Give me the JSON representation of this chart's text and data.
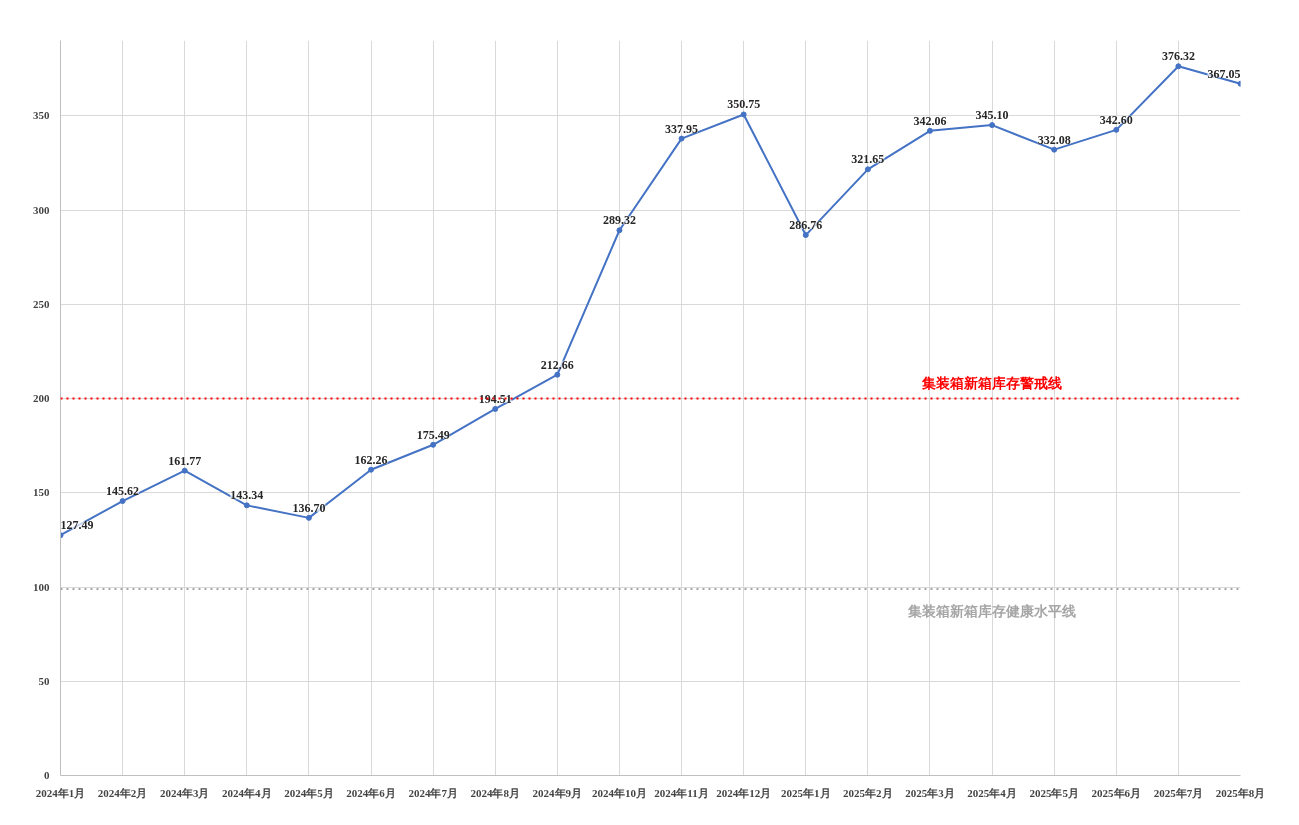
{
  "chart_data": {
    "type": "line",
    "categories": [
      "2024年1月",
      "2024年2月",
      "2024年3月",
      "2024年4月",
      "2024年5月",
      "2024年6月",
      "2024年7月",
      "2024年8月",
      "2024年9月",
      "2024年10月",
      "2024年11月",
      "2024年12月",
      "2025年1月",
      "2025年2月",
      "2025年3月",
      "2025年4月",
      "2025年5月",
      "2025年6月",
      "2025年7月",
      "2025年8月"
    ],
    "series": [
      {
        "color": "#4472c4",
        "values": [
          127.49,
          145.62,
          161.77,
          143.34,
          136.7,
          162.26,
          175.49,
          194.51,
          212.66,
          289.32,
          337.95,
          350.75,
          286.76,
          321.65,
          342.06,
          345.1,
          332.08,
          342.6,
          376.32,
          367.05
        ]
      }
    ],
    "value_labels": [
      "127.49",
      "145.62",
      "161.77",
      "143.34",
      "136.70",
      "162.26",
      "175.49",
      "194.51",
      "212.66",
      "289.32",
      "337.95",
      "350.75",
      "286.76",
      "321.65",
      "342.06",
      "345.10",
      "332.08",
      "342.60",
      "376.32",
      "367.05"
    ],
    "ylim": [
      0,
      390
    ],
    "yticks": [
      0,
      50,
      100,
      150,
      200,
      250,
      300,
      350
    ],
    "ref_lines": [
      {
        "axis": "y",
        "value": 200,
        "label": "集装箱新箱库存警戒线",
        "color": "#ff0000",
        "line_style": "dotted"
      },
      {
        "axis": "y",
        "value": 99,
        "label": "集装箱新箱库存健康水平线",
        "color": "#a6a6a6",
        "line_style": "dotted"
      }
    ],
    "grid": true,
    "marker": "circle",
    "line_style": "solid"
  }
}
